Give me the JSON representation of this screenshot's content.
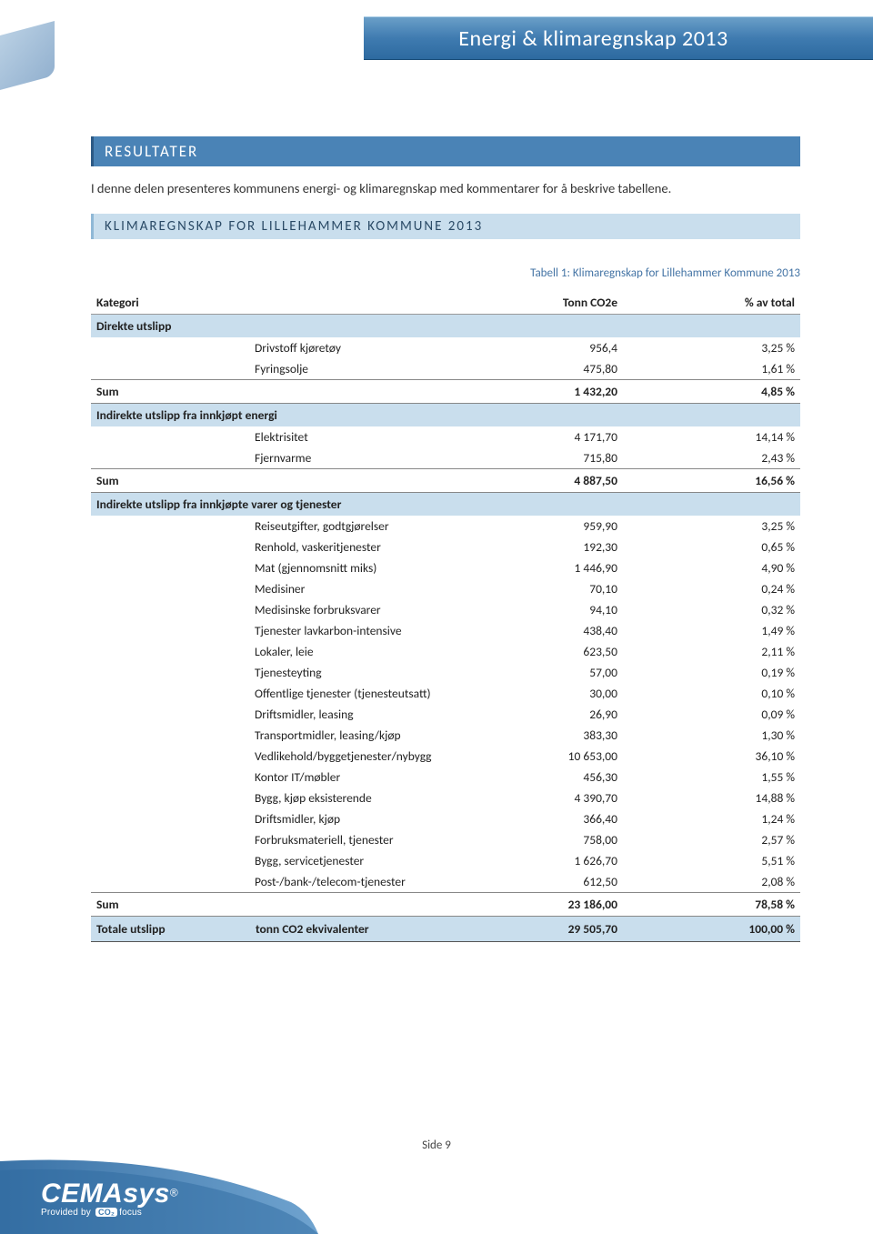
{
  "header": {
    "title": "Energi & klimaregnskap 2013"
  },
  "section": {
    "heading": "RESULTATER",
    "intro": "I denne delen presenteres kommunens energi- og klimaregnskap med kommentarer for å beskrive tabellene.",
    "sub_heading": "KLIMAREGNSKAP FOR LILLEHAMMER KOMMUNE 2013"
  },
  "table": {
    "caption": "Tabell 1: Klimaregnskap for Lillehammer Kommune 2013",
    "columns": {
      "kategori": "Kategori",
      "tonn": "Tonn CO2e",
      "pct": "% av total"
    },
    "sum_label": "Sum",
    "total_label": "Totale utslipp",
    "total_sublabel": "tonn CO2 ekvivalenter",
    "groups": [
      {
        "name": "Direkte utslipp",
        "rows": [
          {
            "label": "Drivstoff kjøretøy",
            "val": "956,4",
            "pct": "3,25 %"
          },
          {
            "label": "Fyringsolje",
            "val": "475,80",
            "pct": "1,61 %"
          }
        ],
        "sum": {
          "val": "1 432,20",
          "pct": "4,85 %"
        }
      },
      {
        "name": "Indirekte utslipp fra innkjøpt energi",
        "rows": [
          {
            "label": "Elektrisitet",
            "val": "4 171,70",
            "pct": "14,14 %"
          },
          {
            "label": "Fjernvarme",
            "val": "715,80",
            "pct": "2,43 %"
          }
        ],
        "sum": {
          "val": "4 887,50",
          "pct": "16,56 %"
        }
      },
      {
        "name": "Indirekte utslipp fra innkjøpte varer og tjenester",
        "rows": [
          {
            "label": "Reiseutgifter, godtgjørelser",
            "val": "959,90",
            "pct": "3,25 %"
          },
          {
            "label": "Renhold, vaskeritjenester",
            "val": "192,30",
            "pct": "0,65 %"
          },
          {
            "label": "Mat (gjennomsnitt miks)",
            "val": "1 446,90",
            "pct": "4,90 %"
          },
          {
            "label": "Medisiner",
            "val": "70,10",
            "pct": "0,24 %"
          },
          {
            "label": "Medisinske forbruksvarer",
            "val": "94,10",
            "pct": "0,32 %"
          },
          {
            "label": "Tjenester lavkarbon-intensive",
            "val": "438,40",
            "pct": "1,49 %"
          },
          {
            "label": "Lokaler, leie",
            "val": "623,50",
            "pct": "2,11 %"
          },
          {
            "label": "Tjenesteyting",
            "val": "57,00",
            "pct": "0,19 %"
          },
          {
            "label": "Offentlige tjenester (tjenesteutsatt)",
            "val": "30,00",
            "pct": "0,10 %"
          },
          {
            "label": "Driftsmidler, leasing",
            "val": "26,90",
            "pct": "0,09 %"
          },
          {
            "label": "Transportmidler, leasing/kjøp",
            "val": "383,30",
            "pct": "1,30 %"
          },
          {
            "label": "Vedlikehold/byggetjenester/nybygg",
            "val": "10 653,00",
            "pct": "36,10 %"
          },
          {
            "label": "Kontor IT/møbler",
            "val": "456,30",
            "pct": "1,55 %"
          },
          {
            "label": "Bygg, kjøp eksisterende",
            "val": "4 390,70",
            "pct": "14,88 %"
          },
          {
            "label": "Driftsmidler, kjøp",
            "val": "366,40",
            "pct": "1,24 %"
          },
          {
            "label": "Forbruksmateriell, tjenester",
            "val": "758,00",
            "pct": "2,57 %"
          },
          {
            "label": "Bygg, servicetjenester",
            "val": "1 626,70",
            "pct": "5,51 %"
          },
          {
            "label": "Post-/bank-/telecom-tjenester",
            "val": "612,50",
            "pct": "2,08 %"
          }
        ],
        "sum": {
          "val": "23 186,00",
          "pct": "78,58 %"
        }
      }
    ],
    "total": {
      "val": "29 505,70",
      "pct": "100,00 %"
    }
  },
  "footer": {
    "brand": "CEMAsys",
    "reg": "®",
    "tag_pre": "Provided by ",
    "tag_box": "CO₂",
    "tag_post": "focus",
    "page": "Side 9"
  },
  "colors": {
    "header_grad_top": "#6a9fc8",
    "header_grad_bot": "#2d6aa0",
    "cat_bg": "#c9deed",
    "section_bg": "#4a83b6",
    "text": "#222222"
  }
}
